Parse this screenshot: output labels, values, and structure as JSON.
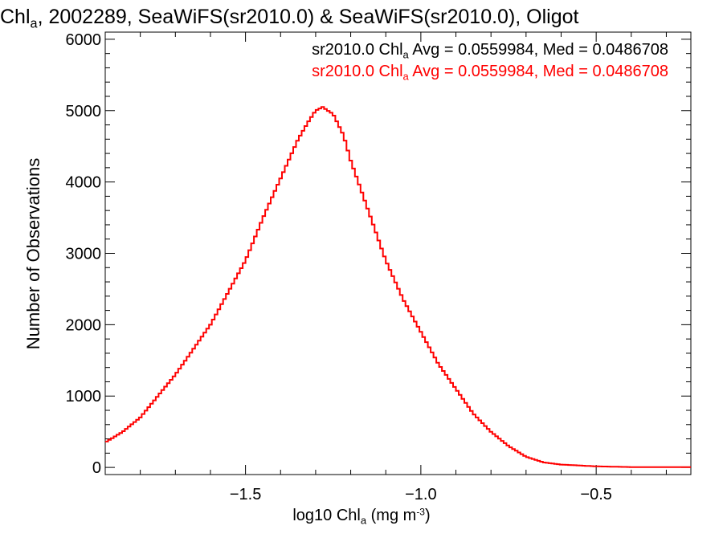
{
  "title": {
    "pre": "Chl",
    "sub": "a",
    "post": ", 2002289, SeaWiFS(sr2010.0) & SeaWiFS(sr2010.0), Oligot"
  },
  "stats": [
    {
      "pre": "sr2010.0 Chl",
      "sub": "a",
      "post": " Avg = 0.0559984, Med = 0.0486708",
      "color": "#000000"
    },
    {
      "pre": "sr2010.0 Chl",
      "sub": "a",
      "post": " Avg = 0.0559984, Med = 0.0486708",
      "color": "#ff0000"
    }
  ],
  "xlabel": {
    "pre": "log10 Chl",
    "sub": "a",
    "post": " (mg m",
    "sup": "-3",
    "end": ")"
  },
  "ylabel": "Number of Observations",
  "chart_data": {
    "type": "line",
    "step": true,
    "xlim": [
      -1.9,
      -0.23
    ],
    "ylim": [
      -100,
      6100
    ],
    "xticks": [
      -1.5,
      -1.0,
      -0.5
    ],
    "xtick_labels": [
      "−1.5",
      "−1.0",
      "−0.5"
    ],
    "yticks": [
      0,
      1000,
      2000,
      3000,
      4000,
      5000,
      6000
    ],
    "ytick_labels": [
      "0",
      "1000",
      "2000",
      "3000",
      "4000",
      "5000",
      "6000"
    ],
    "series": [
      {
        "color": "#ff0000",
        "x": [
          -1.9,
          -1.85,
          -1.8,
          -1.75,
          -1.7,
          -1.65,
          -1.6,
          -1.55,
          -1.5,
          -1.45,
          -1.4,
          -1.35,
          -1.32,
          -1.3,
          -1.28,
          -1.25,
          -1.22,
          -1.2,
          -1.15,
          -1.1,
          -1.05,
          -1.0,
          -0.95,
          -0.9,
          -0.85,
          -0.8,
          -0.75,
          -0.7,
          -0.65,
          -0.6,
          -0.5,
          -0.4,
          -0.3,
          -0.23
        ],
        "y": [
          350,
          500,
          700,
          1000,
          1300,
          1650,
          2000,
          2450,
          2900,
          3500,
          4050,
          4600,
          4850,
          5000,
          5050,
          4950,
          4650,
          4300,
          3600,
          2900,
          2350,
          1900,
          1450,
          1100,
          750,
          500,
          300,
          150,
          70,
          40,
          15,
          5,
          3,
          3
        ]
      }
    ]
  }
}
